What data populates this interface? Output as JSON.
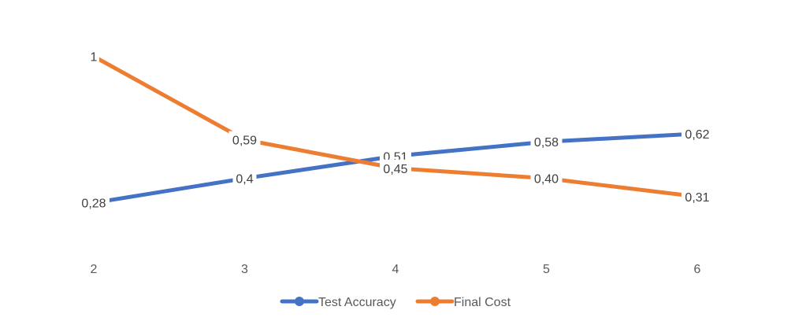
{
  "chart_data": {
    "type": "line",
    "categories": [
      "2",
      "3",
      "4",
      "5",
      "6"
    ],
    "series": [
      {
        "name": "Test Accuracy",
        "color": "#4472C4",
        "values": [
          0.28,
          0.4,
          0.51,
          0.58,
          0.62
        ],
        "labels": [
          "0,28",
          "0,4",
          "0,51",
          "0,58",
          "0,62"
        ]
      },
      {
        "name": "Final Cost",
        "color": "#ED7D31",
        "values": [
          1,
          0.59,
          0.45,
          0.4,
          0.31
        ],
        "labels": [
          "1",
          "0,59",
          "0,45",
          "0,40",
          "0,31"
        ]
      }
    ],
    "ylim": [
      0,
      1.2
    ],
    "grid": false,
    "legend": "bottom",
    "title": "",
    "xlabel": "",
    "ylabel": ""
  }
}
